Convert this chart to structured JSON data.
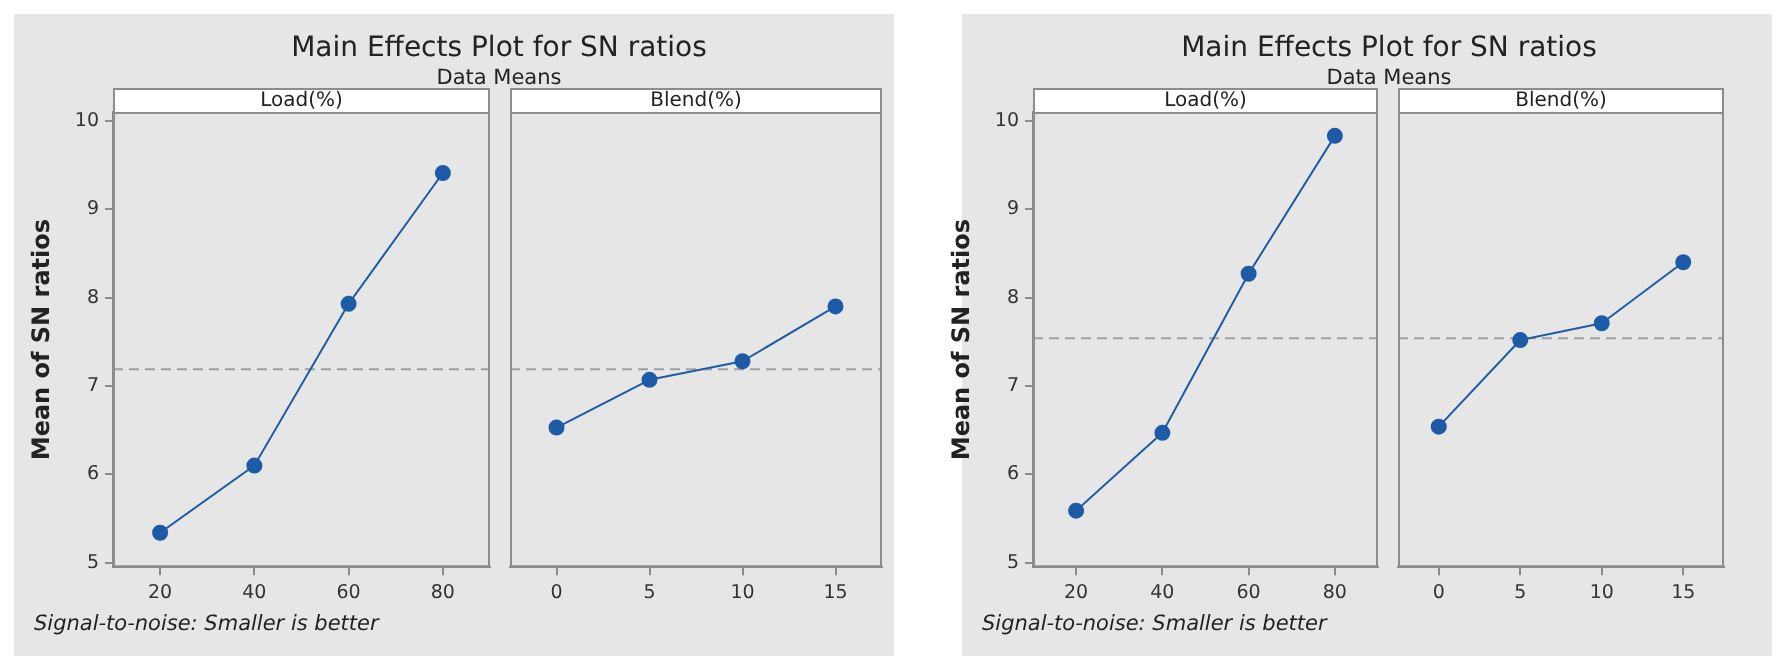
{
  "chart_data": [
    {
      "type": "line",
      "title": "Main Effects Plot for SN ratios",
      "subtitle": "Data Means",
      "ylabel": "Mean of SN ratios",
      "xlabel": "Load(%)",
      "annotations": [
        "Signal-to-noise: Smaller is better"
      ],
      "x": [
        20,
        40,
        60,
        80
      ],
      "xlim": [
        10,
        90
      ],
      "xticks": [
        20,
        40,
        60,
        80
      ],
      "ylim": [
        4.95,
        10.1
      ],
      "yticks": [
        5,
        6,
        7,
        8,
        9,
        10
      ],
      "marker": "circle",
      "series": [
        {
          "color": "#1d5ba6",
          "values": [
            5.34,
            6.1,
            7.93,
            9.41
          ]
        }
      ],
      "ref_lines": [
        {
          "axis": "y",
          "value": 7.19,
          "color": "#a0a0a0",
          "line_style": "dashed"
        }
      ]
    },
    {
      "type": "line",
      "xlabel": "Blend(%)",
      "x": [
        0,
        5,
        10,
        15
      ],
      "xlim": [
        -2.5,
        17.5
      ],
      "xticks": [
        0,
        5,
        10,
        15
      ],
      "ylim": [
        4.95,
        10.1
      ],
      "tick_labels": "x",
      "marker": "circle",
      "series": [
        {
          "color": "#1d5ba6",
          "values": [
            6.53,
            7.07,
            7.28,
            7.9
          ]
        }
      ],
      "ref_lines": [
        {
          "axis": "y",
          "value": 7.19,
          "color": "#a0a0a0",
          "line_style": "dashed"
        }
      ]
    },
    {
      "type": "line",
      "title": "Main Effects Plot for SN ratios",
      "subtitle": "Data Means",
      "ylabel": "Mean of SN ratios",
      "xlabel": "Load(%)",
      "annotations": [
        "Signal-to-noise: Smaller is better"
      ],
      "x": [
        20,
        40,
        60,
        80
      ],
      "xlim": [
        10,
        90
      ],
      "xticks": [
        20,
        40,
        60,
        80
      ],
      "ylim": [
        4.95,
        10.1
      ],
      "yticks": [
        5,
        6,
        7,
        8,
        9,
        10
      ],
      "marker": "circle",
      "series": [
        {
          "color": "#1d5ba6",
          "values": [
            5.59,
            6.47,
            8.27,
            9.83
          ]
        }
      ],
      "ref_lines": [
        {
          "axis": "y",
          "value": 7.54,
          "color": "#a0a0a0",
          "line_style": "dashed"
        }
      ]
    },
    {
      "type": "line",
      "xlabel": "Blend(%)",
      "x": [
        0,
        5,
        10,
        15
      ],
      "xlim": [
        -2.5,
        17.5
      ],
      "xticks": [
        0,
        5,
        10,
        15
      ],
      "ylim": [
        4.95,
        10.1
      ],
      "tick_labels": "x",
      "marker": "circle",
      "series": [
        {
          "color": "#1d5ba6",
          "values": [
            6.54,
            7.52,
            7.71,
            8.4
          ]
        }
      ],
      "ref_lines": [
        {
          "axis": "y",
          "value": 7.54,
          "color": "#a0a0a0",
          "line_style": "dashed"
        }
      ]
    }
  ]
}
